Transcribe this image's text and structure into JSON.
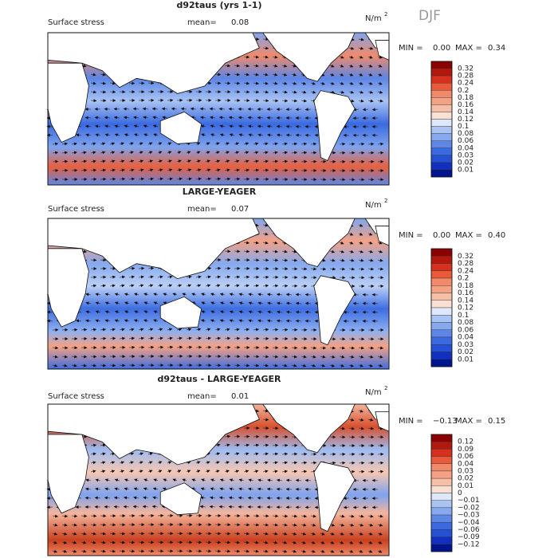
{
  "season": "DJF",
  "panels": [
    {
      "title": "d92taus (yrs 1-1)",
      "field": "Surface stress",
      "mean_label": "mean=",
      "mean": "0.08",
      "units": "N/m",
      "units_exp": "2",
      "min_label": "MIN =",
      "min": "0.00",
      "max_label": "MAX =",
      "max": "0.34",
      "colorbar": [
        "0.32",
        "0.28",
        "0.24",
        "0.2",
        "0.18",
        "0.16",
        "0.14",
        "0.12",
        "0.1",
        "0.08",
        "0.06",
        "0.04",
        "0.03",
        "0.02",
        "0.01"
      ]
    },
    {
      "title": "LARGE-YEAGER",
      "field": "Surface stress",
      "mean_label": "mean=",
      "mean": "0.07",
      "units": "N/m",
      "units_exp": "2",
      "min_label": "MIN =",
      "min": "0.00",
      "max_label": "MAX =",
      "max": "0.40",
      "colorbar": [
        "0.32",
        "0.28",
        "0.24",
        "0.2",
        "0.18",
        "0.16",
        "0.14",
        "0.12",
        "0.1",
        "0.08",
        "0.06",
        "0.04",
        "0.03",
        "0.02",
        "0.01"
      ]
    },
    {
      "title": "d92taus - LARGE-YEAGER",
      "field": "Surface stress",
      "mean_label": "mean=",
      "mean": "0.01",
      "units": "N/m",
      "units_exp": "2",
      "min_label": "MIN =",
      "min": "−0.13",
      "max_label": "MAX =",
      "max": "0.15",
      "colorbar": [
        "0.12",
        "0.09",
        "0.06",
        "0.04",
        "0.03",
        "0.02",
        "0.01",
        "0",
        "−0.01",
        "−0.02",
        "−0.03",
        "−0.04",
        "−0.06",
        "−0.09",
        "−0.12"
      ]
    }
  ]
}
